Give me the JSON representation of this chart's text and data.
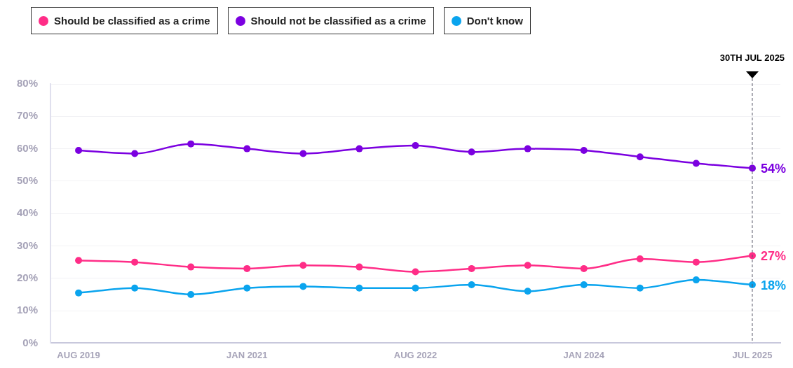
{
  "chart_data": {
    "type": "line",
    "categories": [
      "AUG 2019",
      null,
      null,
      "JAN 2021",
      null,
      null,
      "AUG 2022",
      null,
      null,
      "JAN 2024",
      null,
      null,
      "JUL 2025"
    ],
    "series": [
      {
        "name": "Should be classified as a crime",
        "color": "#ff2d87",
        "values": [
          25.5,
          25,
          23.5,
          23,
          24,
          23.5,
          22,
          23,
          24,
          23,
          26,
          25,
          27
        ],
        "value_labels": [
          null,
          null,
          null,
          null,
          null,
          null,
          null,
          null,
          null,
          null,
          null,
          null,
          "27%"
        ]
      },
      {
        "name": "Should not be classified as a crime",
        "color": "#7b00e0",
        "values": [
          59.5,
          58.5,
          61.5,
          60,
          58.5,
          60,
          61,
          59,
          60,
          59.5,
          57.5,
          55.5,
          54
        ],
        "value_labels": [
          null,
          null,
          null,
          null,
          null,
          null,
          null,
          null,
          null,
          null,
          null,
          null,
          "54%"
        ]
      },
      {
        "name": "Don't know",
        "color": "#0aa4ee",
        "values": [
          15.5,
          17,
          15,
          17,
          17.5,
          17,
          17,
          18,
          16,
          18,
          17,
          19.5,
          18
        ],
        "value_labels": [
          null,
          null,
          null,
          null,
          null,
          null,
          null,
          null,
          null,
          null,
          null,
          null,
          "18%"
        ]
      }
    ],
    "ylim": [
      0,
      80
    ],
    "yticks": [
      {
        "value": 0,
        "label": "0%"
      },
      {
        "value": 10,
        "label": "10%"
      },
      {
        "value": 20,
        "label": "20%"
      },
      {
        "value": 30,
        "label": "30%"
      },
      {
        "value": 40,
        "label": "40%"
      },
      {
        "value": 50,
        "label": "50%"
      },
      {
        "value": 60,
        "label": "60%"
      },
      {
        "value": 70,
        "label": "70%"
      },
      {
        "value": 80,
        "label": "80%"
      }
    ],
    "ref_lines": [
      {
        "axis": "x",
        "value": "JUL 2025",
        "label": "30TH JUL 2025",
        "color": "#555566",
        "line_style": "dashed"
      }
    ],
    "grid": "y",
    "legend": "top left",
    "marker": "circle",
    "line_style": "solid"
  }
}
